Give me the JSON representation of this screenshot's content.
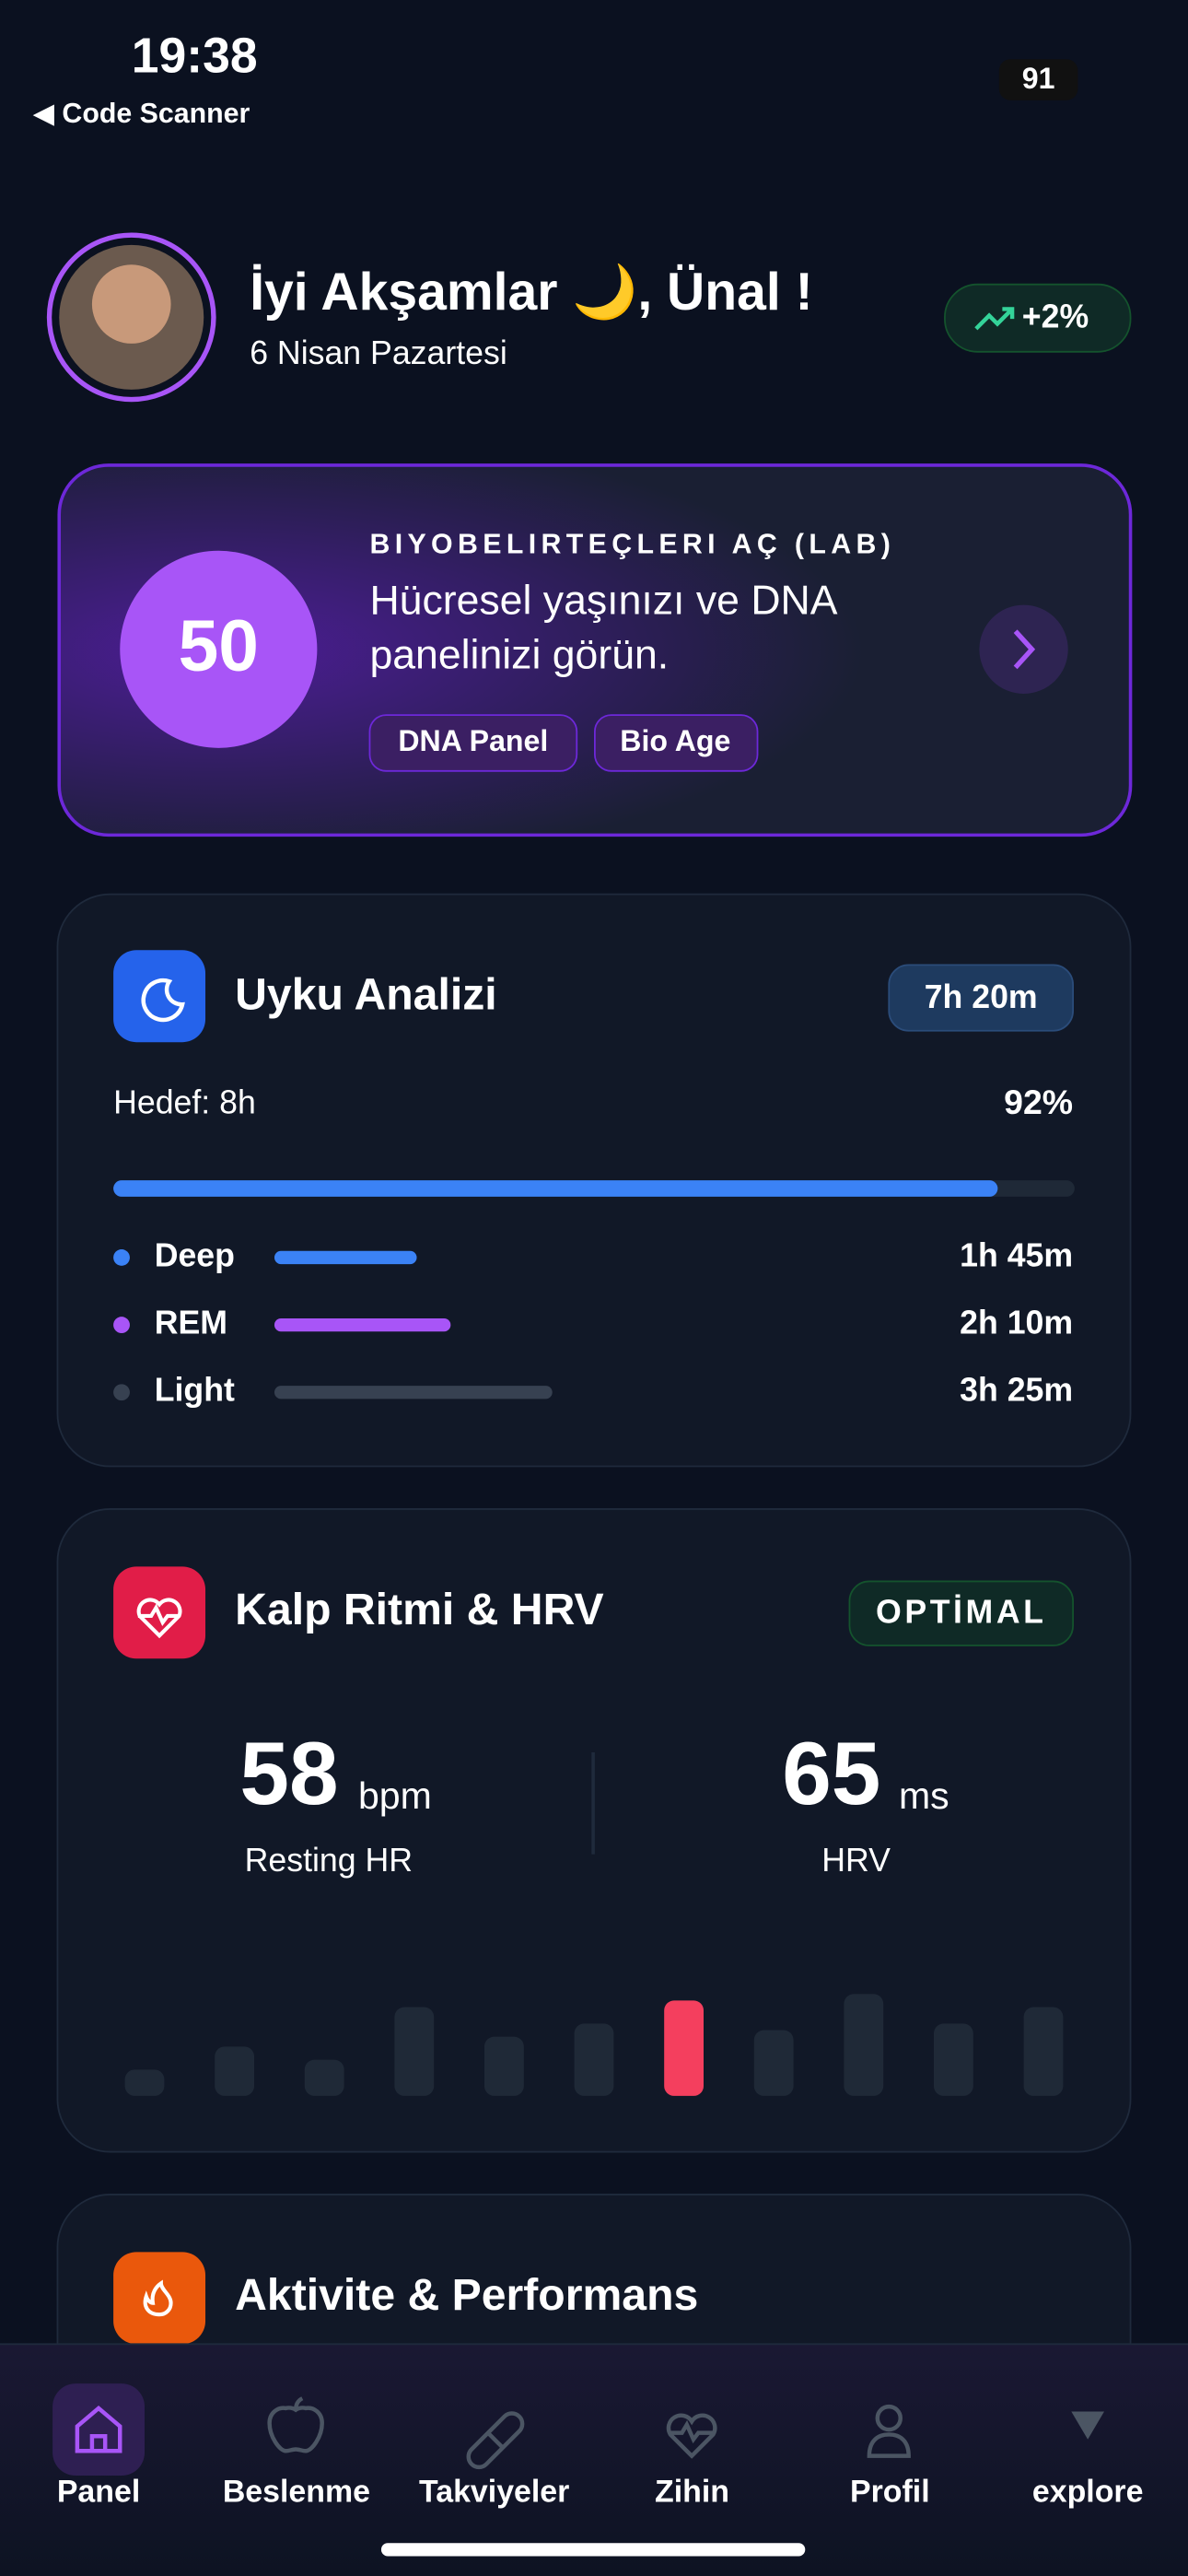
{
  "status": {
    "time": "19:38",
    "back": "◀ Code Scanner",
    "battery": "91"
  },
  "header": {
    "greeting": "İyi Akşamlar 🌙, Ünal !",
    "date": "6 Nisan Pazartesi",
    "trend": "+2%"
  },
  "lab": {
    "score": "50",
    "eyebrow": "BIYOBELIRTEÇLERI AÇ (LAB)",
    "line1": "Hücresel yaşınızı ve DNA",
    "line2": "panelinizi görün.",
    "chips": [
      "DNA Panel",
      "Bio Age"
    ]
  },
  "sleep": {
    "title": "Uyku Analizi",
    "total": "7h 20m",
    "goal": "Hedef: 8h",
    "progress": 92,
    "progress_label": "92%",
    "stages": [
      {
        "name": "Deep",
        "duration": "1h 45m",
        "color": "#3b82f6"
      },
      {
        "name": "REM",
        "duration": "2h 10m",
        "color": "#a855f7"
      },
      {
        "name": "Light",
        "duration": "3h 25m",
        "color": "#374151"
      }
    ]
  },
  "heart": {
    "title": "Kalp Ritmi & HRV",
    "status": "OPTİMAL",
    "hr": "58",
    "hr_unit": "bpm",
    "hr_label": "Resting HR",
    "hrv": "65",
    "hrv_unit": "ms",
    "hrv_label": "HRV",
    "chart_data": {
      "type": "bar",
      "values": [
        16,
        30,
        22,
        54,
        36,
        44,
        58,
        40,
        62,
        44,
        54
      ],
      "color": "#1f2937",
      "highlight": 6,
      "highlight_color": "#f43f5e"
    }
  },
  "activity": {
    "title": "Aktivite & Performans"
  },
  "nav": [
    "Panel",
    "Beslenme",
    "Takviyeler",
    "Zihin",
    "Profil",
    "explore"
  ]
}
